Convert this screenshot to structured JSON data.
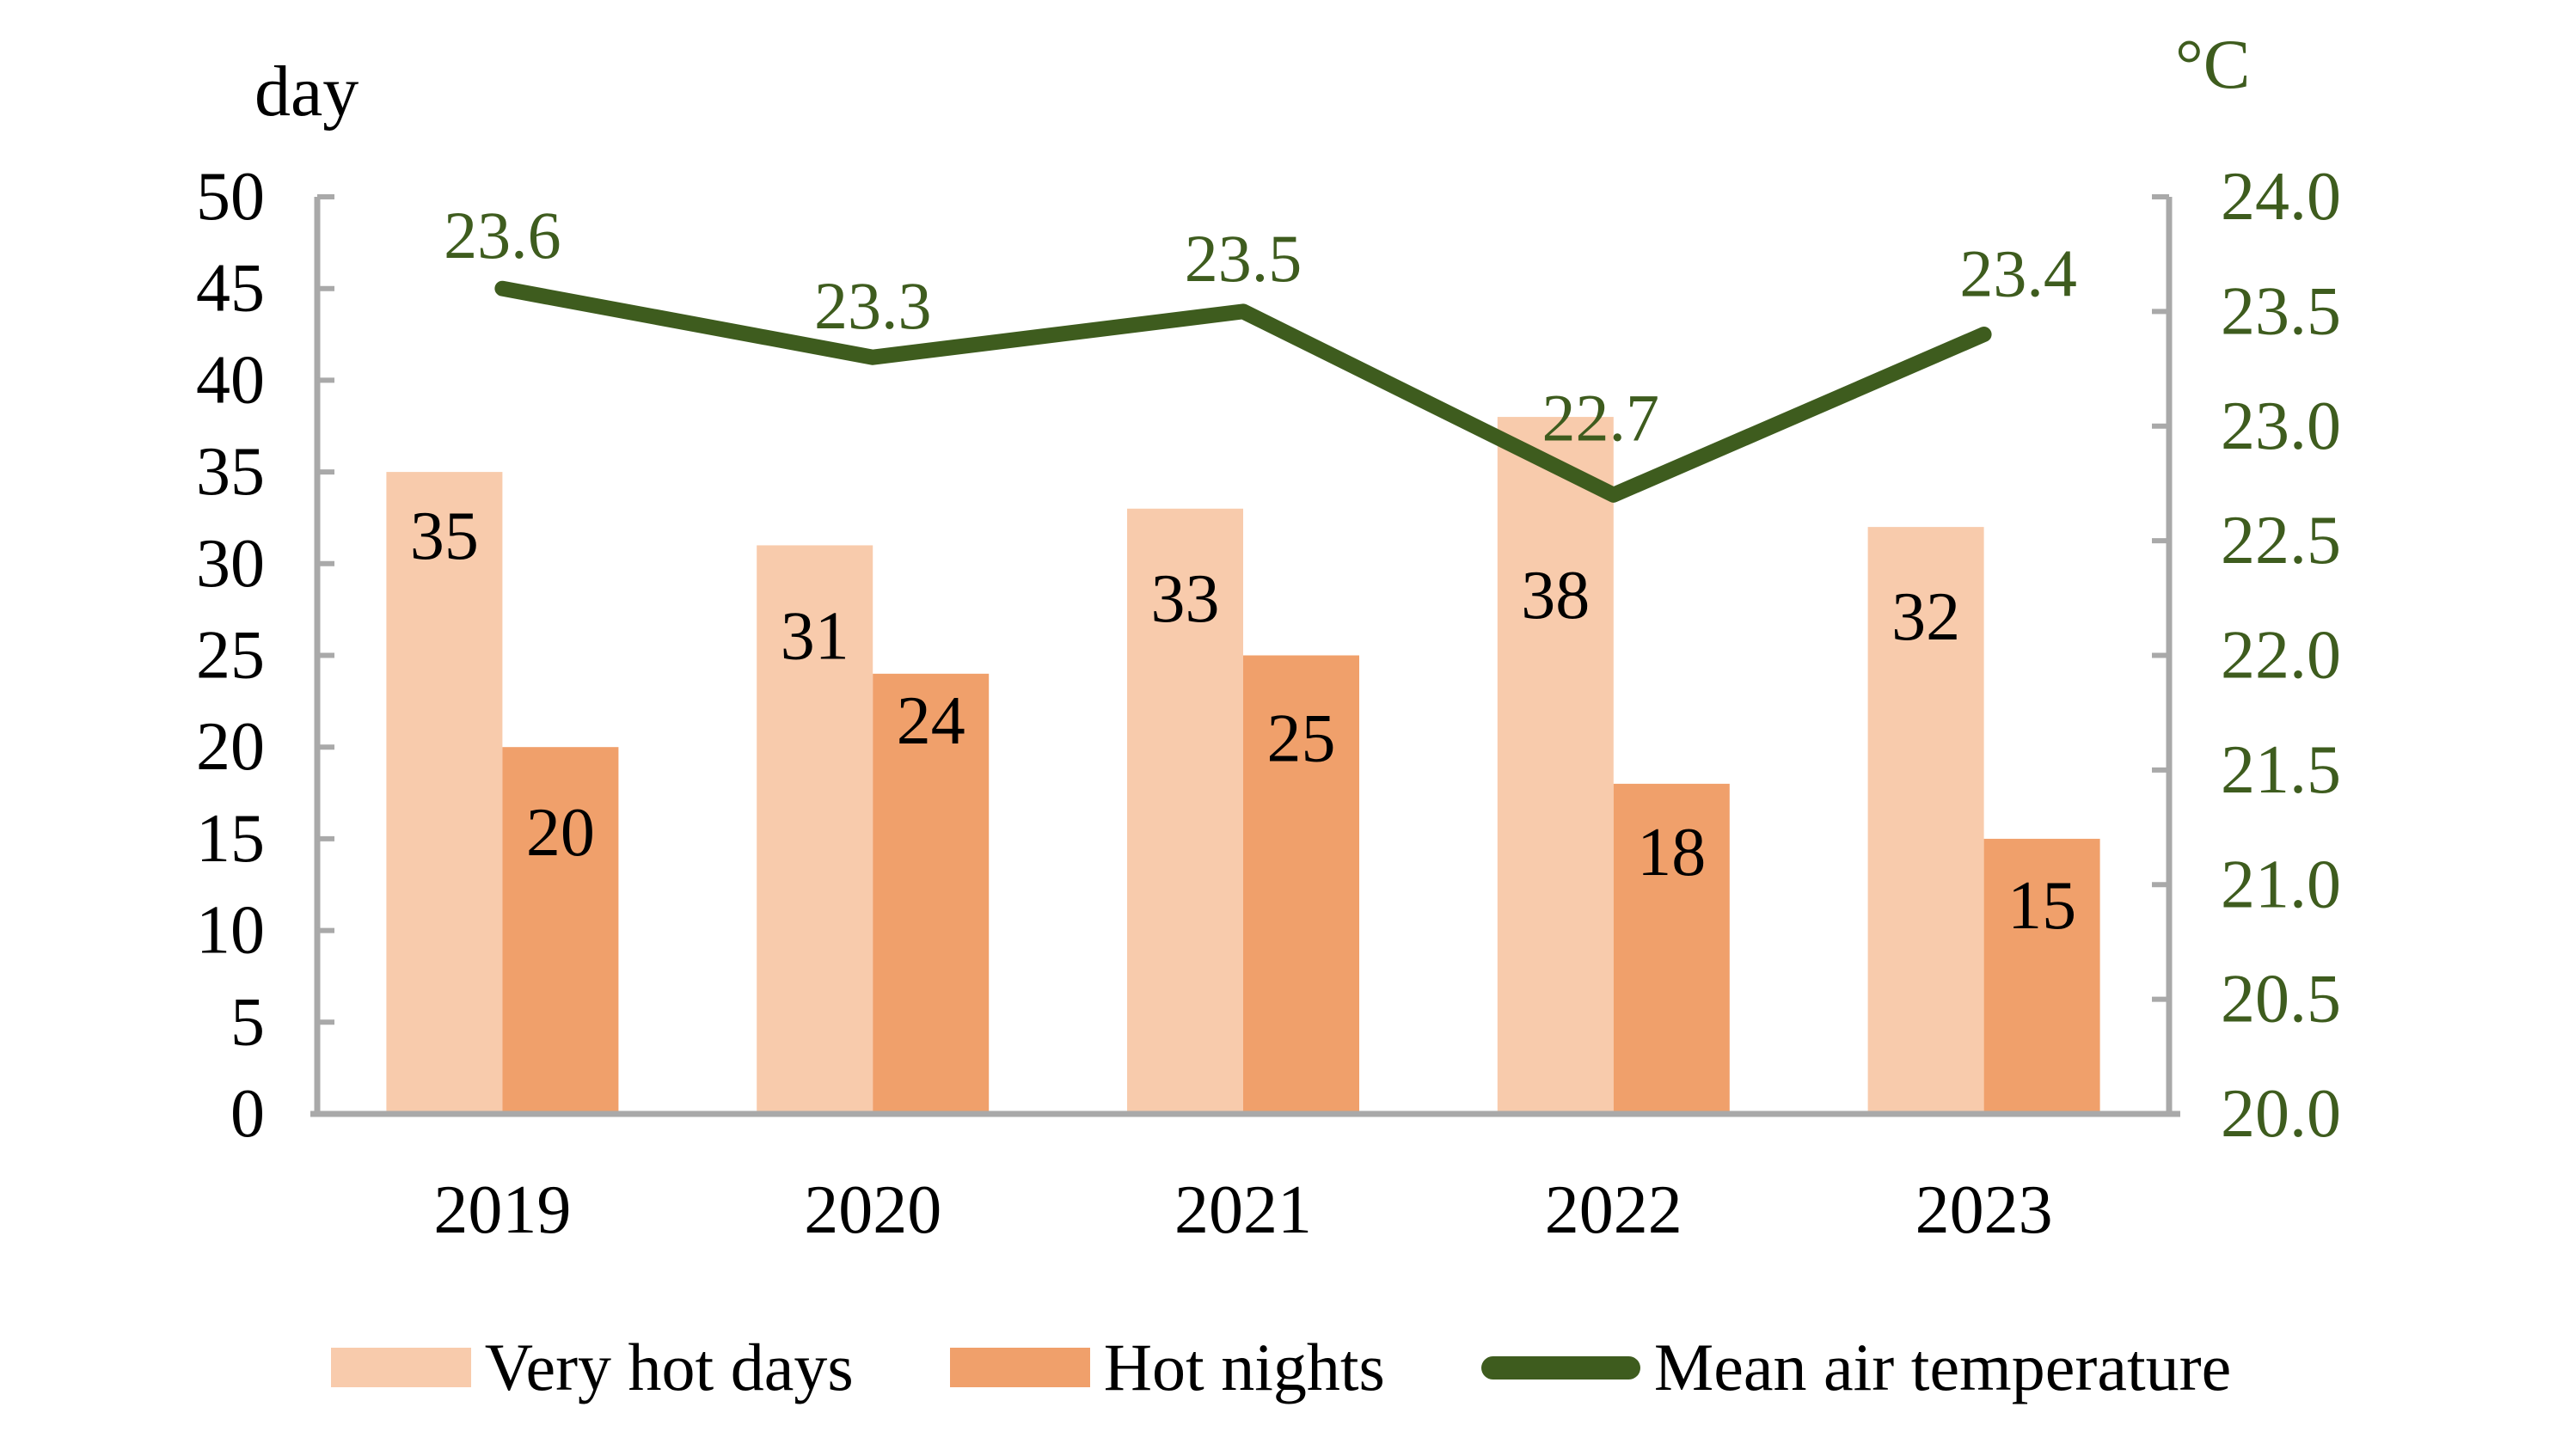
{
  "titles": {
    "left_axis_unit": "day",
    "right_axis_unit": "°C"
  },
  "legend": [
    {
      "label": "Very hot days",
      "type": "bar",
      "color": "#F8CBAC"
    },
    {
      "label": "Hot nights",
      "type": "bar",
      "color": "#F0A06B"
    },
    {
      "label": "Mean air temperature",
      "type": "line",
      "color": "#3E5C1E"
    }
  ],
  "colors": {
    "axis_line": "#A9A9A9",
    "bar_label_text": "#000000",
    "left_tick_text": "#000000",
    "right_tick_text": "#3E5C1E",
    "line_label_text": "#3E5C1E"
  },
  "chart_data": {
    "type": "bar",
    "subtype": "grouped-bars-with-line",
    "title": "",
    "xlabel": "",
    "ylabel": "day",
    "y2label": "°C",
    "grid": false,
    "legend_position": "bottom",
    "data_labels": true,
    "categories": [
      "2019",
      "2020",
      "2021",
      "2022",
      "2023"
    ],
    "series": [
      {
        "name": "Very hot days",
        "type": "bar",
        "axis": "left",
        "color": "#F8CBAC",
        "values": [
          35,
          31,
          33,
          38,
          32
        ],
        "labels": [
          "35",
          "31",
          "33",
          "38",
          "32"
        ]
      },
      {
        "name": "Hot nights",
        "type": "bar",
        "axis": "left",
        "color": "#F0A06B",
        "values": [
          20,
          24,
          25,
          18,
          15
        ],
        "labels": [
          "20",
          "24",
          "25",
          "18",
          "15"
        ]
      },
      {
        "name": "Mean air temperature",
        "type": "line",
        "axis": "right",
        "color": "#3E5C1E",
        "values": [
          23.6,
          23.3,
          23.5,
          22.7,
          23.4
        ],
        "labels": [
          "23.6",
          "23.3",
          "23.5",
          "22.7",
          "23.4"
        ]
      }
    ],
    "left_axis": {
      "min": 0,
      "max": 50,
      "step": 5,
      "tick_labels": [
        "0",
        "5",
        "10",
        "15",
        "20",
        "25",
        "30",
        "35",
        "40",
        "45",
        "50"
      ]
    },
    "right_axis": {
      "min": 20,
      "max": 24,
      "step": 0.5,
      "tick_labels": [
        "20.0",
        "20.5",
        "21.0",
        "21.5",
        "22.0",
        "22.5",
        "23.0",
        "23.5",
        "24.0"
      ]
    }
  }
}
